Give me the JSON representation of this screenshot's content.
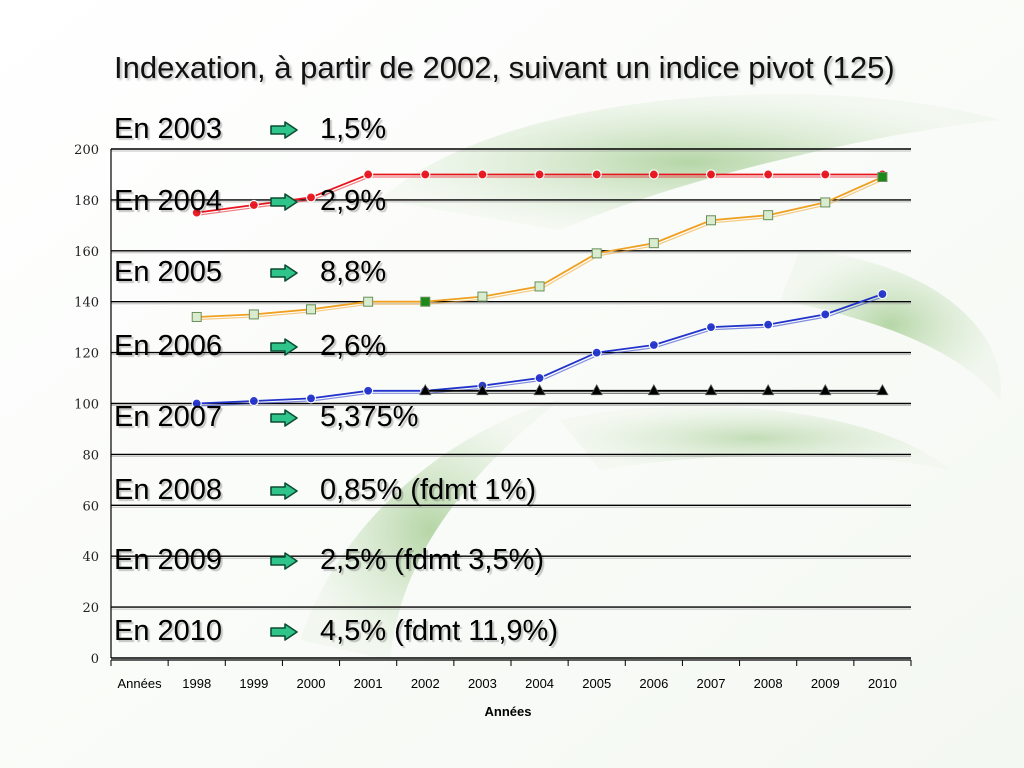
{
  "slide": {
    "title": "Indexation, à partir de 2002, suivant un indice pivot (125)",
    "bullets": [
      {
        "year": "En 2003",
        "value": "1,5%"
      },
      {
        "year": "En 2004",
        "value": "2,9%"
      },
      {
        "year": "En 2005",
        "value": "8,8%"
      },
      {
        "year": "En 2006",
        "value": "2,6%"
      },
      {
        "year": "En 2007",
        "value": "5,375%"
      },
      {
        "year": "En 2008",
        "value": "0,85% (fdmt 1%)"
      },
      {
        "year": "En 2009",
        "value": "2,5% (fdmt 3,5%)"
      },
      {
        "year": "En 2010",
        "value": "4,5% (fdmt 11,9%)"
      }
    ]
  },
  "colors": {
    "background_green": "#bfdcb0",
    "line_red": "#e8141e",
    "line_orange": "#f0a020",
    "line_blue": "#2233cc",
    "line_black": "#000000",
    "marker_green": "#1b8a1b",
    "gridline": "#000000"
  },
  "chart_data": {
    "type": "line",
    "categories": [
      "Années",
      "1998",
      "1999",
      "2000",
      "2001",
      "2002",
      "2003",
      "2004",
      "2005",
      "2006",
      "2007",
      "2008",
      "2009",
      "2010"
    ],
    "xlabel": "Années",
    "ylabel": "",
    "ylim": [
      0,
      200
    ],
    "yticks": [
      "0",
      "20",
      "40",
      "60",
      "80",
      "100",
      "120",
      "140",
      "160",
      "180",
      "200"
    ],
    "grid": true,
    "series": [
      {
        "color": "#e8141e",
        "marker": "circle",
        "values": [
          null,
          175,
          178,
          181,
          190,
          190,
          190,
          190,
          190,
          190,
          190,
          190,
          190,
          190
        ]
      },
      {
        "color": "#f0a020",
        "marker": "square",
        "values": [
          null,
          134,
          135,
          137,
          140,
          140,
          142,
          146,
          159,
          163,
          172,
          174,
          179,
          189
        ]
      },
      {
        "color": "#2233cc",
        "marker": "circle",
        "values": [
          null,
          100,
          101,
          102,
          105,
          105,
          107,
          110,
          120,
          123,
          130,
          131,
          135,
          143
        ]
      },
      {
        "color": "#000000",
        "marker": "triangle",
        "values": [
          null,
          null,
          null,
          null,
          null,
          105,
          105,
          105,
          105,
          105,
          105,
          105,
          105,
          105
        ]
      }
    ]
  }
}
